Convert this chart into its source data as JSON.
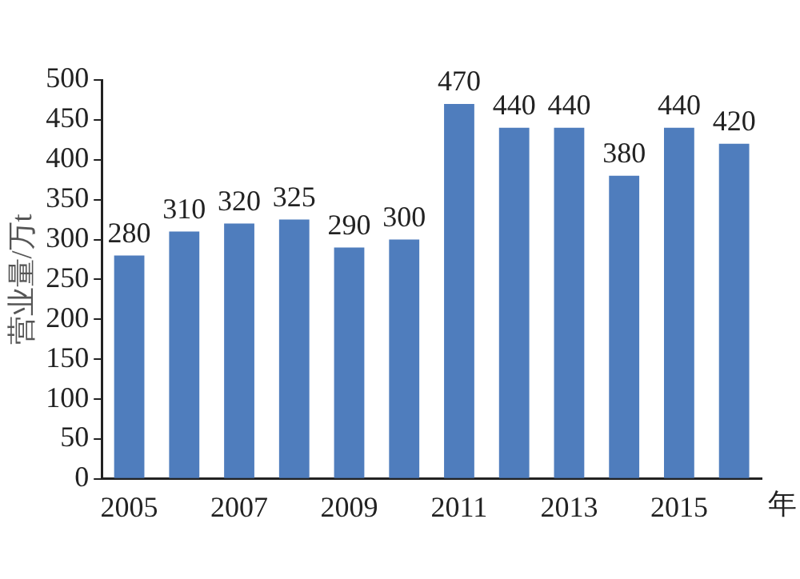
{
  "chart_data": {
    "type": "bar",
    "categories": [
      "2005",
      null,
      "2007",
      null,
      "2009",
      null,
      "2011",
      null,
      "2013",
      null,
      "2015",
      null
    ],
    "values": [
      280,
      310,
      320,
      325,
      290,
      300,
      470,
      440,
      440,
      380,
      440,
      420
    ],
    "color": "#4f7dbd",
    "ylim": [
      0,
      500
    ],
    "yticks": [
      0,
      50,
      100,
      150,
      200,
      250,
      300,
      350,
      400,
      450,
      500
    ],
    "grid": false,
    "data_labels": true,
    "xlabel": "年",
    "ylabel": "营业量/万t"
  }
}
